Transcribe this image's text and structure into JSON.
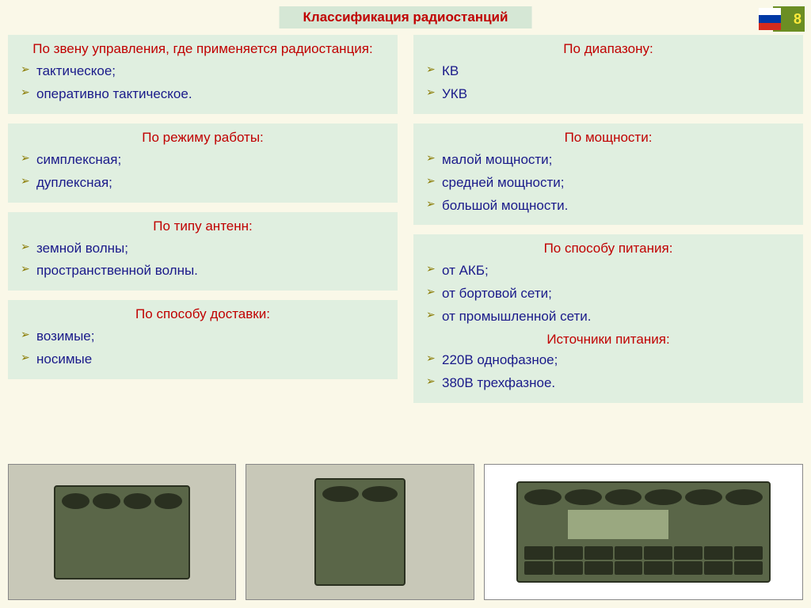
{
  "page_number": "8",
  "title": "Классификация радиостанций",
  "left_column": [
    {
      "header": "По звену управления, где применяется радиостанция:",
      "items": [
        "тактическое;",
        "оперативно тактическое."
      ]
    },
    {
      "header": "По режиму работы:",
      "items": [
        "симплексная;",
        "дуплексная;"
      ]
    },
    {
      "header": "По типу антенн:",
      "items": [
        "земной волны;",
        "пространственной волны."
      ]
    },
    {
      "header": "По способу доставки:",
      "items": [
        "возимые;",
        "носимые"
      ]
    }
  ],
  "right_column": [
    {
      "header": "По диапазону:",
      "items": [
        "КВ",
        "УКВ"
      ]
    },
    {
      "header": "По мощности:",
      "items": [
        "малой мощности;",
        "средней мощности;",
        "большой мощности."
      ]
    },
    {
      "header": "По способу питания:",
      "items": [
        "от АКБ;",
        "от бортовой сети;",
        "от промышленной сети."
      ],
      "subheader": "Источники питания:",
      "subitems": [
        "220В однофазное;",
        "380В трехфазное."
      ]
    }
  ],
  "colors": {
    "page_bg": "#faf8e8",
    "box_bg": "#e0efe0",
    "title_bg": "#d5e7d5",
    "header_color": "#c00000",
    "item_color": "#1a1a8a",
    "bullet_color": "#8a7a00",
    "badge_bg": "#6b8e23",
    "badge_text": "#ffeb3b"
  },
  "typography": {
    "title_fontsize": 17,
    "header_fontsize": 17,
    "item_fontsize": 17,
    "font_family": "Arial"
  },
  "images": [
    {
      "name": "radio-photo-1",
      "desc": "portable military radio set olive green"
    },
    {
      "name": "radio-photo-2",
      "desc": "handheld military transceiver"
    },
    {
      "name": "radio-photo-3",
      "desc": "rack-mount military radio М3ТР"
    }
  ]
}
